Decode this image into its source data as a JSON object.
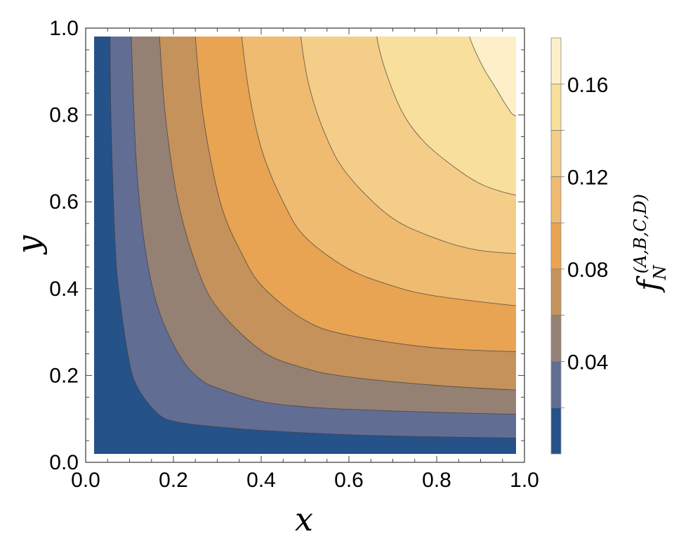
{
  "chart_data": {
    "type": "contour",
    "xlabel": "x",
    "ylabel": "y",
    "xlim": [
      0.0,
      1.0
    ],
    "ylim": [
      0.0,
      1.0
    ],
    "x_ticks": [
      "0.0",
      "0.2",
      "0.4",
      "0.6",
      "0.8",
      "1.0"
    ],
    "y_ticks": [
      "0.0",
      "0.2",
      "0.4",
      "0.6",
      "0.8",
      "1.0"
    ],
    "colorbar": {
      "label_main": "f",
      "label_sub": "N",
      "label_sup": "(A,B,C,D)",
      "range": [
        0.0,
        0.18
      ],
      "ticks": [
        "0.04",
        "0.08",
        "0.12",
        "0.16"
      ],
      "levels": [
        0.02,
        0.04,
        0.06,
        0.08,
        0.1,
        0.12,
        0.14,
        0.16
      ],
      "band_colors": [
        "#26528a",
        "#626d93",
        "#958174",
        "#c5925b",
        "#e8a453",
        "#efbb70",
        "#f4cd88",
        "#f9df9c",
        "#fdf0c8"
      ]
    },
    "contour_lines": [
      {
        "level": 0.02,
        "x": [
          0.038,
          0.04,
          0.05,
          0.06,
          0.08,
          0.1,
          0.15,
          0.2,
          0.3,
          0.4,
          0.6,
          0.8,
          1.0
        ],
        "y": [
          1.0,
          0.81,
          0.5,
          0.38,
          0.24,
          0.165,
          0.097,
          0.076,
          0.064,
          0.056,
          0.046,
          0.041,
          0.038
        ]
      },
      {
        "level": 0.04,
        "x": [
          0.088,
          0.1,
          0.12,
          0.15,
          0.2,
          0.25,
          0.3,
          0.4,
          0.5,
          0.6,
          0.8,
          1.0
        ],
        "y": [
          1.0,
          0.7,
          0.5,
          0.355,
          0.24,
          0.18,
          0.155,
          0.125,
          0.113,
          0.107,
          0.1,
          0.095
        ]
      },
      {
        "level": 0.06,
        "x": [
          0.155,
          0.17,
          0.2,
          0.25,
          0.3,
          0.4,
          0.5,
          0.6,
          0.8,
          1.0
        ],
        "y": [
          1.0,
          0.8,
          0.6,
          0.43,
          0.34,
          0.245,
          0.205,
          0.185,
          0.165,
          0.153
        ]
      },
      {
        "level": 0.08,
        "x": [
          0.24,
          0.26,
          0.3,
          0.35,
          0.4,
          0.5,
          0.6,
          0.8,
          1.0
        ],
        "y": [
          1.0,
          0.8,
          0.6,
          0.48,
          0.4,
          0.32,
          0.285,
          0.255,
          0.245
        ]
      },
      {
        "level": 0.1,
        "x": [
          0.35,
          0.37,
          0.4,
          0.45,
          0.5,
          0.6,
          0.7,
          0.8,
          1.0
        ],
        "y": [
          1.0,
          0.85,
          0.72,
          0.6,
          0.52,
          0.445,
          0.405,
          0.38,
          0.355
        ]
      },
      {
        "level": 0.12,
        "x": [
          0.49,
          0.51,
          0.55,
          0.6,
          0.7,
          0.8,
          0.9,
          1.0
        ],
        "y": [
          1.0,
          0.88,
          0.76,
          0.67,
          0.57,
          0.52,
          0.49,
          0.48
        ]
      },
      {
        "level": 0.14,
        "x": [
          0.67,
          0.69,
          0.73,
          0.78,
          0.85,
          0.92,
          1.0
        ],
        "y": [
          1.0,
          0.92,
          0.82,
          0.75,
          0.69,
          0.645,
          0.62
        ]
      },
      {
        "level": 0.16,
        "x": [
          0.89,
          0.92,
          0.95,
          0.98,
          1.0
        ],
        "y": [
          1.0,
          0.93,
          0.88,
          0.83,
          0.81
        ]
      }
    ]
  }
}
